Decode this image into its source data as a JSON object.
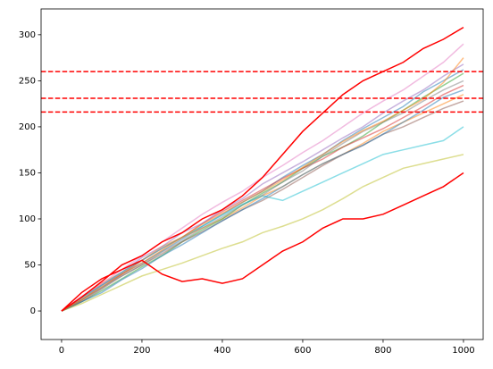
{
  "chart_data": {
    "type": "line",
    "x": [
      0,
      50,
      100,
      150,
      200,
      250,
      300,
      350,
      400,
      450,
      500,
      550,
      600,
      650,
      700,
      750,
      800,
      850,
      900,
      950,
      1000
    ],
    "xlim": [
      -51,
      1049
    ],
    "ylim": [
      -31,
      328
    ],
    "xticks": [
      0,
      200,
      400,
      600,
      800,
      1000
    ],
    "yticks": [
      0,
      50,
      100,
      150,
      200,
      250,
      300
    ],
    "hlines": [
      260,
      231,
      216
    ],
    "hline_color": "#ff0000",
    "series": [
      {
        "color": "#1f77b4",
        "alpha": 0.5,
        "values": [
          0,
          12,
          25,
          40,
          52,
          65,
          78,
          92,
          105,
          118,
          130,
          145,
          158,
          170,
          185,
          198,
          210,
          222,
          238,
          250,
          262
        ]
      },
      {
        "color": "#ff7f0e",
        "alpha": 0.5,
        "values": [
          0,
          14,
          30,
          42,
          55,
          70,
          80,
          90,
          100,
          112,
          125,
          135,
          148,
          160,
          170,
          182,
          195,
          205,
          215,
          225,
          235
        ]
      },
      {
        "color": "#2ca02c",
        "alpha": 0.5,
        "values": [
          0,
          10,
          22,
          35,
          48,
          60,
          75,
          88,
          100,
          115,
          128,
          140,
          155,
          168,
          178,
          190,
          205,
          218,
          232,
          245,
          258
        ]
      },
      {
        "color": "#d62728",
        "alpha": 0.5,
        "values": [
          0,
          12,
          28,
          40,
          55,
          68,
          80,
          95,
          108,
          120,
          132,
          144,
          155,
          165,
          178,
          188,
          198,
          210,
          222,
          235,
          245
        ]
      },
      {
        "color": "#9467bd",
        "alpha": 0.5,
        "values": [
          0,
          15,
          28,
          42,
          58,
          70,
          85,
          95,
          110,
          122,
          138,
          150,
          162,
          175,
          188,
          200,
          215,
          228,
          240,
          255,
          268
        ]
      },
      {
        "color": "#8c564b",
        "alpha": 0.5,
        "values": [
          0,
          10,
          24,
          38,
          50,
          62,
          75,
          86,
          98,
          110,
          120,
          132,
          145,
          158,
          170,
          180,
          192,
          200,
          210,
          220,
          228
        ]
      },
      {
        "color": "#e377c2",
        "alpha": 0.5,
        "values": [
          0,
          16,
          30,
          45,
          60,
          75,
          90,
          105,
          118,
          130,
          145,
          158,
          172,
          185,
          200,
          215,
          228,
          240,
          255,
          270,
          290
        ]
      },
      {
        "color": "#7f7f7f",
        "alpha": 0.5,
        "values": [
          0,
          12,
          26,
          38,
          50,
          64,
          76,
          90,
          102,
          115,
          126,
          140,
          152,
          168,
          182,
          195,
          205,
          215,
          228,
          240,
          250
        ]
      },
      {
        "color": "#bcbd22",
        "alpha": 0.5,
        "values": [
          0,
          8,
          18,
          28,
          38,
          45,
          52,
          60,
          68,
          75,
          85,
          92,
          100,
          110,
          122,
          135,
          145,
          155,
          160,
          165,
          170
        ]
      },
      {
        "color": "#17becf",
        "alpha": 0.5,
        "values": [
          0,
          14,
          28,
          42,
          55,
          68,
          80,
          92,
          104,
          116,
          125,
          120,
          130,
          140,
          150,
          160,
          170,
          175,
          180,
          185,
          200
        ]
      },
      {
        "color": "#1f77b4",
        "alpha": 0.5,
        "values": [
          0,
          10,
          20,
          34,
          46,
          60,
          72,
          85,
          98,
          110,
          122,
          135,
          148,
          160,
          170,
          180,
          192,
          205,
          218,
          232,
          240
        ]
      },
      {
        "color": "#ff7f0e",
        "alpha": 0.5,
        "values": [
          0,
          12,
          26,
          40,
          52,
          66,
          80,
          94,
          106,
          118,
          130,
          142,
          156,
          170,
          184,
          196,
          206,
          218,
          230,
          248,
          275
        ]
      },
      {
        "color": "#ff0000",
        "alpha": 1,
        "values": [
          0,
          15,
          32,
          50,
          60,
          75,
          85,
          100,
          110,
          125,
          145,
          170,
          195,
          215,
          235,
          250,
          260,
          270,
          285,
          295,
          308
        ]
      },
      {
        "color": "#ff0000",
        "alpha": 1,
        "values": [
          0,
          20,
          35,
          45,
          55,
          40,
          32,
          35,
          30,
          35,
          50,
          65,
          75,
          90,
          100,
          100,
          105,
          115,
          125,
          135,
          150
        ]
      }
    ]
  }
}
